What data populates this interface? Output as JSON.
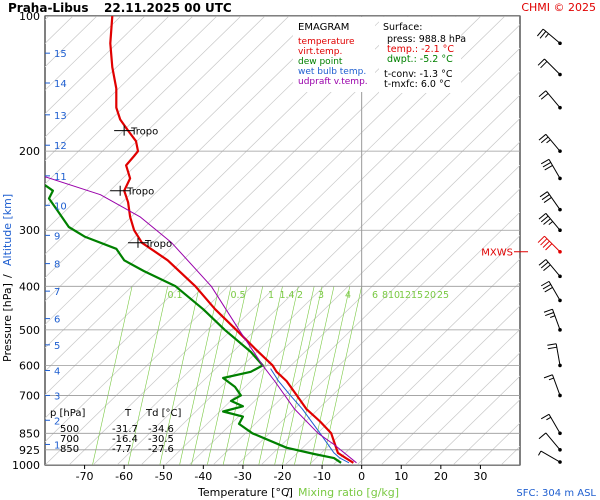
{
  "header": {
    "station": "Praha-Libus",
    "datetime": "22.11.2025 00 UTC",
    "credit": "CHMI © 2025"
  },
  "legend": {
    "title": "EMAGRAM",
    "items": [
      {
        "label": "temperature",
        "color": "#e00000"
      },
      {
        "label": "virt.temp.",
        "color": "#e00000"
      },
      {
        "label": "dew point",
        "color": "#008000"
      },
      {
        "label": "wet bulb temp.",
        "color": "#1f5fd0"
      },
      {
        "label": "udpraft v.temp.",
        "color": "#9900aa"
      }
    ]
  },
  "surface": {
    "title": "Surface:",
    "lines": [
      {
        "text": "press: 988.8 hPa",
        "color": "#000000"
      },
      {
        "text": "temp.: -2.1 °C",
        "color": "#e00000"
      },
      {
        "text": "dwpt.: -5.2 °C",
        "color": "#008000"
      },
      {
        "text": "t-conv: -1.3 °C",
        "color": "#000000"
      },
      {
        "text": "t-mxfc: 6.0 °C",
        "color": "#000000"
      }
    ]
  },
  "table": {
    "headers": [
      "p [hPa]",
      "T",
      "Td [°C]"
    ],
    "rows": [
      [
        "500",
        "-31.7",
        "-34.6"
      ],
      [
        "700",
        "-16.4",
        "-30.5"
      ],
      [
        "850",
        "-7.7",
        "-27.6"
      ]
    ]
  },
  "footer": {
    "xlabel_temperature": "Temperature [°C]",
    "xlabel_sep": "/",
    "xlabel_mixing": "Mixing ratio [g/kg]",
    "sfc": "SFC: 304 m ASL"
  },
  "yaxis": {
    "label_pressure": "Pressure [hPa]",
    "label_sep": "/",
    "label_altitude": "Altitude [km]"
  },
  "mxws_label": "MXWS",
  "tropo_label": "Tropo",
  "chart_data": {
    "type": "line",
    "title": "EMAGRAM",
    "xlabel": "Temperature [°C] / Mixing ratio [g/kg]",
    "ylabel": "Pressure [hPa] / Altitude [km]",
    "xlim": [
      -80,
      40
    ],
    "ylim": [
      1000,
      100
    ],
    "y_scale": "log",
    "x_ticks": [
      -70,
      -60,
      -50,
      -40,
      -30,
      -20,
      -10,
      0,
      10,
      20,
      30
    ],
    "p_ticks": [
      100,
      200,
      300,
      400,
      500,
      600,
      700,
      850,
      925,
      1000
    ],
    "altitude_ticks": [
      {
        "km": 1,
        "p": 900
      },
      {
        "km": 2,
        "p": 795
      },
      {
        "km": 3,
        "p": 700
      },
      {
        "km": 4,
        "p": 616
      },
      {
        "km": 5,
        "p": 540
      },
      {
        "km": 6,
        "p": 472
      },
      {
        "km": 7,
        "p": 410
      },
      {
        "km": 8,
        "p": 356
      },
      {
        "km": 9,
        "p": 308
      },
      {
        "km": 10,
        "p": 264
      },
      {
        "km": 11,
        "p": 227
      },
      {
        "km": 12,
        "p": 194
      },
      {
        "km": 13,
        "p": 166
      },
      {
        "km": 14,
        "p": 141
      },
      {
        "km": 15,
        "p": 121
      }
    ],
    "mixing_ratio_labels": [
      "0.1",
      "0.5",
      "1",
      "1.4",
      "2",
      "3",
      "4",
      "6",
      "8",
      "10",
      "12",
      "15",
      "20",
      "25"
    ],
    "tropopause": [
      {
        "p": 180
      },
      {
        "p": 245
      },
      {
        "p": 320
      }
    ],
    "mxws_p": 335,
    "series": [
      {
        "name": "temperature",
        "color": "#e00000",
        "points": [
          [
            -2.1,
            988.8
          ],
          [
            -4.0,
            965
          ],
          [
            -6.0,
            940
          ],
          [
            -7.7,
            850
          ],
          [
            -10.5,
            800
          ],
          [
            -14.0,
            750
          ],
          [
            -16.4,
            700
          ],
          [
            -19.0,
            650
          ],
          [
            -21.5,
            620
          ],
          [
            -22.5,
            600
          ],
          [
            -27.0,
            550
          ],
          [
            -31.7,
            500
          ],
          [
            -37.0,
            450
          ],
          [
            -42.0,
            400
          ],
          [
            -49.0,
            350
          ],
          [
            -55.5,
            320
          ],
          [
            -57.5,
            300
          ],
          [
            -58.5,
            280
          ],
          [
            -59.0,
            260
          ],
          [
            -60.0,
            245
          ],
          [
            -58.5,
            230
          ],
          [
            -59.5,
            215
          ],
          [
            -57.5,
            205
          ],
          [
            -56.5,
            200
          ],
          [
            -57.0,
            190
          ],
          [
            -59.0,
            180
          ],
          [
            -61.0,
            170
          ],
          [
            -62.0,
            160
          ],
          [
            -62.0,
            145
          ],
          [
            -63.0,
            130
          ],
          [
            -63.5,
            115
          ],
          [
            -63.0,
            100
          ]
        ]
      },
      {
        "name": "dew point",
        "color": "#008000",
        "points": [
          [
            -5.2,
            988.8
          ],
          [
            -7.0,
            965
          ],
          [
            -12.0,
            945
          ],
          [
            -19.0,
            915
          ],
          [
            -27.6,
            850
          ],
          [
            -31.0,
            810
          ],
          [
            -30.0,
            780
          ],
          [
            -35.0,
            760
          ],
          [
            -30.0,
            740
          ],
          [
            -33.0,
            720
          ],
          [
            -30.5,
            700
          ],
          [
            -32.0,
            670
          ],
          [
            -35.0,
            640
          ],
          [
            -28.0,
            620
          ],
          [
            -25.0,
            600
          ],
          [
            -28.0,
            560
          ],
          [
            -34.6,
            500
          ],
          [
            -40.0,
            450
          ],
          [
            -47.0,
            400
          ],
          [
            -55.0,
            370
          ],
          [
            -60.0,
            350
          ],
          [
            -62.0,
            330
          ],
          [
            -70.0,
            310
          ],
          [
            -74.0,
            295
          ],
          [
            -77.0,
            270
          ],
          [
            -79.0,
            255
          ],
          [
            -78.0,
            245
          ],
          [
            -80.0,
            238
          ]
        ]
      },
      {
        "name": "wet bulb temp.",
        "color": "#1f5fd0",
        "points": [
          [
            -3.2,
            988.8
          ],
          [
            -5.5,
            965
          ],
          [
            -7.0,
            940
          ],
          [
            -10.5,
            850
          ],
          [
            -15.0,
            750
          ],
          [
            -18.0,
            700
          ],
          [
            -21.0,
            650
          ],
          [
            -23.0,
            610
          ]
        ]
      },
      {
        "name": "udpraft v.temp.",
        "color": "#9900aa",
        "points": [
          [
            -1.3,
            988.8
          ],
          [
            -7.0,
            900
          ],
          [
            -11.0,
            850
          ],
          [
            -17.0,
            750
          ],
          [
            -22.0,
            650
          ],
          [
            -25.0,
            600
          ],
          [
            -31.0,
            500
          ],
          [
            -38.0,
            400
          ],
          [
            -48.0,
            320
          ],
          [
            -56.0,
            280
          ],
          [
            -66.0,
            250
          ],
          [
            -80.0,
            228
          ]
        ]
      }
    ],
    "wind_barbs": [
      {
        "p": 985,
        "dir": 300,
        "kt": 5
      },
      {
        "p": 925,
        "dir": 320,
        "kt": 10
      },
      {
        "p": 850,
        "dir": 330,
        "kt": 15
      },
      {
        "p": 700,
        "dir": 340,
        "kt": 15
      },
      {
        "p": 600,
        "dir": 350,
        "kt": 20
      },
      {
        "p": 500,
        "dir": 340,
        "kt": 25
      },
      {
        "p": 430,
        "dir": 330,
        "kt": 30
      },
      {
        "p": 380,
        "dir": 320,
        "kt": 30
      },
      {
        "p": 335,
        "dir": 315,
        "kt": 40
      },
      {
        "p": 300,
        "dir": 320,
        "kt": 35
      },
      {
        "p": 270,
        "dir": 325,
        "kt": 30
      },
      {
        "p": 230,
        "dir": 330,
        "kt": 30
      },
      {
        "p": 200,
        "dir": 320,
        "kt": 25
      },
      {
        "p": 160,
        "dir": 320,
        "kt": 20
      },
      {
        "p": 135,
        "dir": 315,
        "kt": 20
      },
      {
        "p": 115,
        "dir": 310,
        "kt": 25
      }
    ]
  }
}
